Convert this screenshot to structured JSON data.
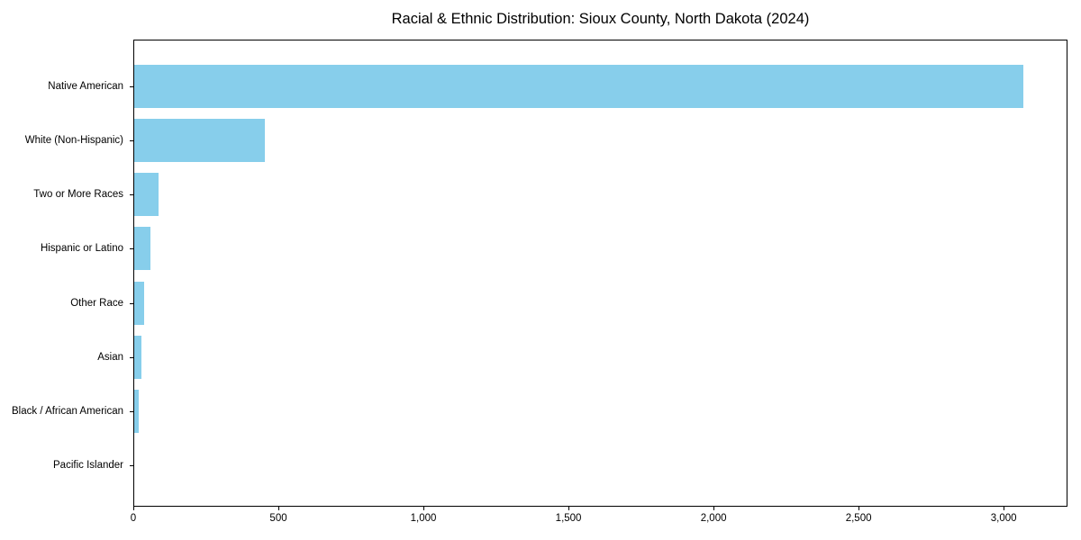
{
  "chart_data": {
    "type": "bar",
    "orientation": "horizontal",
    "title": "Racial & Ethnic Distribution: Sioux County, North Dakota (2024)",
    "categories": [
      "Native American",
      "White (Non-Hispanic)",
      "Two or More Races",
      "Hispanic or Latino",
      "Other Race",
      "Asian",
      "Black / African American",
      "Pacific Islander"
    ],
    "values": [
      3070,
      450,
      85,
      55,
      34,
      26,
      15,
      0
    ],
    "xlabel": "",
    "ylabel": "",
    "xlim": [
      0,
      3220
    ],
    "xticks": [
      {
        "value": 0,
        "label": "0"
      },
      {
        "value": 500,
        "label": "500"
      },
      {
        "value": 1000,
        "label": "1,000"
      },
      {
        "value": 1500,
        "label": "1,500"
      },
      {
        "value": 2000,
        "label": "2,000"
      },
      {
        "value": 2500,
        "label": "2,500"
      },
      {
        "value": 3000,
        "label": "3,000"
      }
    ],
    "bar_color": "#87CEEB",
    "background_color": "#ffffff",
    "frame_color": "#000000",
    "grid": false,
    "legend": null
  }
}
